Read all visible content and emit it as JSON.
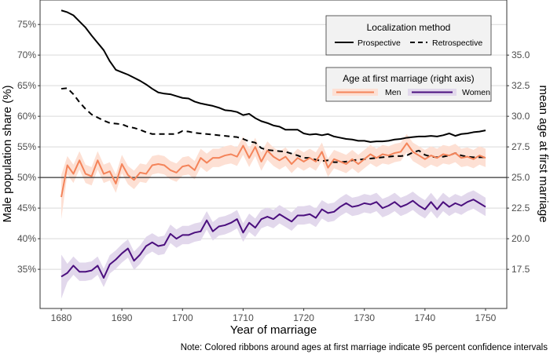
{
  "chart_data": {
    "type": "line",
    "xlabel": "Year of marriage",
    "ylabel": "Male population share (%)",
    "ylabel_right": "mean age at first marriage",
    "note": "Note: Colored ribbons around ages at first marriage indicate 95 percent confidence intervals",
    "xlim": [
      1676.5,
      1753.5
    ],
    "ylim": [
      28.6,
      79.0
    ],
    "ylim_right": [
      14.3,
      39.5
    ],
    "grid": true,
    "reference_line_y": 50,
    "x_ticks": [
      1680,
      1690,
      1700,
      1710,
      1720,
      1730,
      1740,
      1750
    ],
    "x_tick_labels": [
      "1680",
      "1690",
      "1700",
      "1710",
      "1720",
      "1730",
      "1740",
      "1750"
    ],
    "y_ticks": [
      35,
      40,
      45,
      50,
      55,
      60,
      65,
      70,
      75
    ],
    "y_tick_labels": [
      "35%",
      "40%",
      "45%",
      "50%",
      "55%",
      "60%",
      "65%",
      "70%",
      "75%"
    ],
    "y_right_ticks": [
      17.5,
      20.0,
      22.5,
      25.0,
      27.5,
      30.0,
      32.5,
      35.0
    ],
    "y_right_tick_labels": [
      "17.5",
      "20.0",
      "22.5",
      "25.0",
      "27.5",
      "30.0",
      "32.5",
      "35.0"
    ],
    "legends": [
      {
        "title": "Localization method",
        "position": "top-right",
        "entries": [
          {
            "label": "Prospective",
            "style": "solid"
          },
          {
            "label": "Retrospective",
            "style": "dashed"
          }
        ]
      },
      {
        "title": "Age at first marriage (right axis)",
        "position": "top-right",
        "entries": [
          {
            "label": "Men",
            "color": "#f4845a"
          },
          {
            "label": "Women",
            "color": "#4b0f7e"
          }
        ]
      }
    ],
    "colors": {
      "prospective": "#000000",
      "retrospective": "#000000",
      "men": "#f4845a",
      "men_ribbon": "#fde0d4",
      "women": "#4b0f7e",
      "women_ribbon": "#e2d8ec"
    },
    "x": [
      1680,
      1681,
      1682,
      1683,
      1684,
      1685,
      1686,
      1687,
      1688,
      1689,
      1690,
      1691,
      1692,
      1693,
      1694,
      1695,
      1696,
      1697,
      1698,
      1699,
      1700,
      1701,
      1702,
      1703,
      1704,
      1705,
      1706,
      1707,
      1708,
      1709,
      1710,
      1711,
      1712,
      1713,
      1714,
      1715,
      1716,
      1717,
      1718,
      1719,
      1720,
      1721,
      1722,
      1723,
      1724,
      1725,
      1726,
      1727,
      1728,
      1729,
      1730,
      1731,
      1732,
      1733,
      1734,
      1735,
      1736,
      1737,
      1738,
      1739,
      1740,
      1741,
      1742,
      1743,
      1744,
      1745,
      1746,
      1747,
      1748,
      1749,
      1750
    ],
    "series": [
      {
        "name": "Prospective",
        "axis": "left",
        "values": [
          77.3,
          77.0,
          76.5,
          75.5,
          74.5,
          73.2,
          72.0,
          70.8,
          69.0,
          67.6,
          67.2,
          66.8,
          66.3,
          65.8,
          65.2,
          64.5,
          63.9,
          63.7,
          63.6,
          63.3,
          63.0,
          62.9,
          62.4,
          62.1,
          61.9,
          61.7,
          61.4,
          61.0,
          60.9,
          60.7,
          60.2,
          60.4,
          59.7,
          59.2,
          58.9,
          58.5,
          58.3,
          57.8,
          57.8,
          57.8,
          57.2,
          57.0,
          57.1,
          56.9,
          57.1,
          56.7,
          56.5,
          56.3,
          56.2,
          56.0,
          56.0,
          55.8,
          55.9,
          55.9,
          56.0,
          56.2,
          56.3,
          56.5,
          56.6,
          56.7,
          56.7,
          56.8,
          56.7,
          56.9,
          57.2,
          56.8,
          57.1,
          57.2,
          57.4,
          57.5,
          57.7
        ]
      },
      {
        "name": "Retrospective",
        "axis": "left",
        "values": [
          64.5,
          64.6,
          63.6,
          62.3,
          61.2,
          60.3,
          59.8,
          59.3,
          58.9,
          58.8,
          58.7,
          58.3,
          58.1,
          57.8,
          57.4,
          57.1,
          57.1,
          57.1,
          57.1,
          57.1,
          57.6,
          57.5,
          57.3,
          57.2,
          57.1,
          57.0,
          56.9,
          56.8,
          56.7,
          56.6,
          56.3,
          55.9,
          55.7,
          54.8,
          54.5,
          54.4,
          54.3,
          54.2,
          53.9,
          53.6,
          53.2,
          53.2,
          52.9,
          52.7,
          52.8,
          52.5,
          52.5,
          52.6,
          52.8,
          52.9,
          53.0,
          53.1,
          53.2,
          53.3,
          53.4,
          53.5,
          53.5,
          53.6,
          54.1,
          54.4,
          53.7,
          53.4,
          53.3,
          53.4,
          53.6,
          54.0,
          53.6,
          53.4,
          53.3,
          53.3,
          53.3
        ]
      },
      {
        "name": "Men",
        "axis": "right",
        "values": [
          23.4,
          26.0,
          25.3,
          26.4,
          25.3,
          25.1,
          26.4,
          25.3,
          25.5,
          24.5,
          26.1,
          25.2,
          24.8,
          25.4,
          25.3,
          26.0,
          26.1,
          26.0,
          25.6,
          25.4,
          25.9,
          26.0,
          25.6,
          26.6,
          26.2,
          26.6,
          26.6,
          26.8,
          26.9,
          26.7,
          27.6,
          26.6,
          27.5,
          26.3,
          27.2,
          26.7,
          26.4,
          26.7,
          26.1,
          26.6,
          26.3,
          26.6,
          26.3,
          27.1,
          25.8,
          26.5,
          26.3,
          26.1,
          26.5,
          26.1,
          26.5,
          26.9,
          26.6,
          26.9,
          26.8,
          27.0,
          27.1,
          27.8,
          27.1,
          26.8,
          26.5,
          26.8,
          26.6,
          26.9,
          26.8,
          27.0,
          26.6,
          26.7,
          26.5,
          26.8,
          26.6
        ]
      },
      {
        "name": "Women",
        "axis": "right",
        "values": [
          16.9,
          17.2,
          17.8,
          17.3,
          17.3,
          17.4,
          17.8,
          16.8,
          17.9,
          18.3,
          18.8,
          19.2,
          18.2,
          18.7,
          19.4,
          19.7,
          19.4,
          19.5,
          20.4,
          20.0,
          20.3,
          20.3,
          20.5,
          20.6,
          21.5,
          20.6,
          21.0,
          21.1,
          21.3,
          21.6,
          20.5,
          21.3,
          20.9,
          21.6,
          21.8,
          21.6,
          22.0,
          21.7,
          21.4,
          21.9,
          21.9,
          22.0,
          21.7,
          22.4,
          22.1,
          22.2,
          22.6,
          22.9,
          22.6,
          22.7,
          22.9,
          22.8,
          23.0,
          22.5,
          22.7,
          23.0,
          22.6,
          22.8,
          23.1,
          22.7,
          22.4,
          23.0,
          22.4,
          23.0,
          22.6,
          22.9,
          22.7,
          23.0,
          23.2,
          22.9,
          22.6
        ]
      }
    ]
  }
}
